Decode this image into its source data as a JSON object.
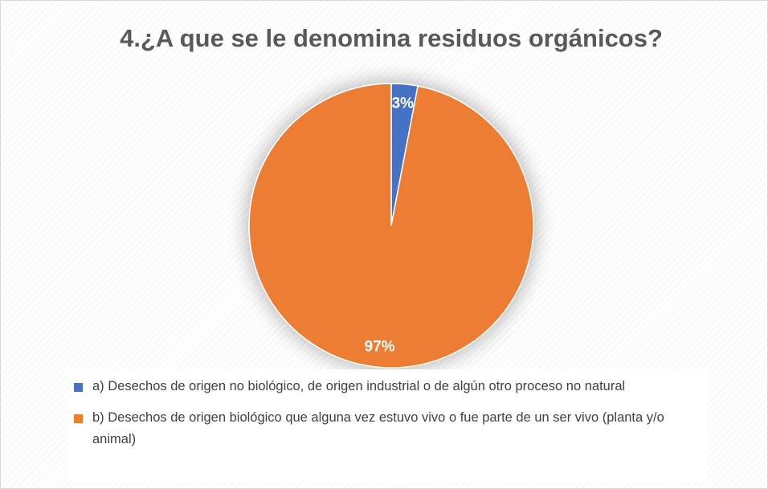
{
  "chart_data": {
    "type": "pie",
    "title": "4.¿A que se le denomina residuos orgánicos?",
    "categories": [
      "a) Desechos de origen no biológico, de origen industrial o de algún otro proceso no natural",
      "b) Desechos de origen biológico que alguna vez estuvo vivo o fue parte de un ser vivo (planta y/o animal)"
    ],
    "values": [
      3,
      97
    ],
    "value_labels": [
      "3%",
      "97%"
    ],
    "colors": [
      "#4472c4",
      "#ed7d31"
    ],
    "legend": "bottom"
  }
}
